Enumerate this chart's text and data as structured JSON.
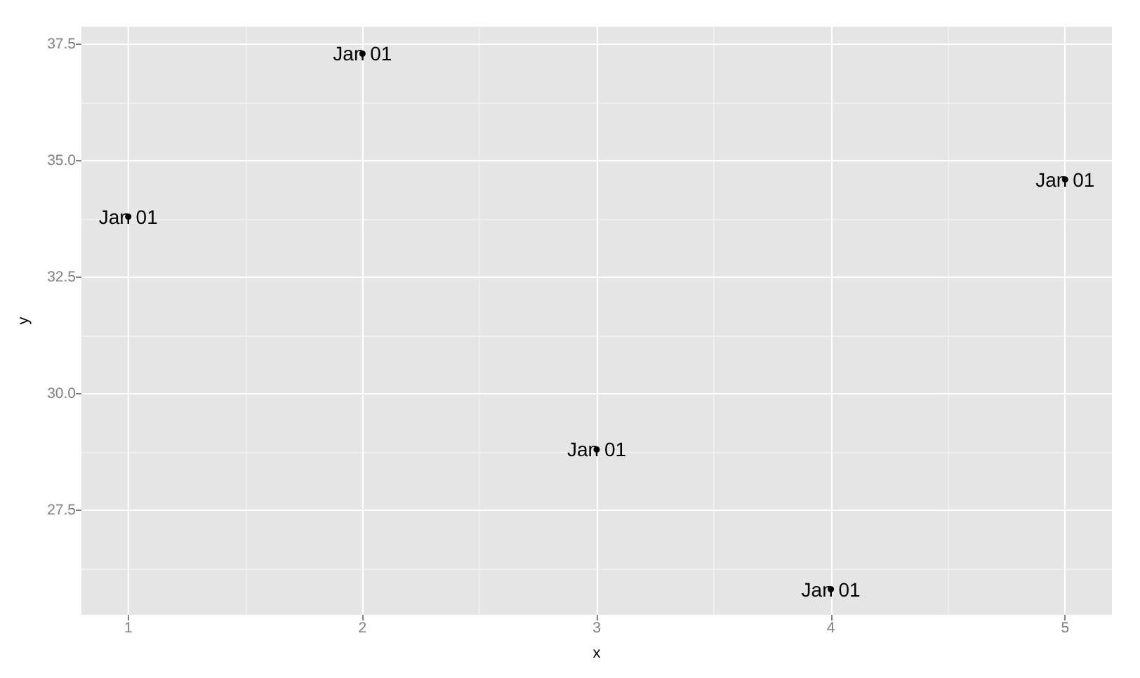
{
  "chart_data": {
    "type": "scatter",
    "xlabel": "x",
    "ylabel": "y",
    "x": [
      1,
      2,
      3,
      4,
      5
    ],
    "values": [
      33.8,
      37.3,
      28.8,
      25.8,
      34.6
    ],
    "value_labels": [
      "Jan 01",
      "Jan 01",
      "Jan 01",
      "Jan 01",
      "Jan 01"
    ],
    "color": "#000000",
    "marker": "circle",
    "xlim": [
      0.8,
      5.2
    ],
    "ylim": [
      25.25,
      37.88
    ],
    "xticks": [
      1,
      2,
      3,
      4,
      5
    ],
    "yticks": [
      27.5,
      {
        "value": 30,
        "label": "30.0"
      },
      32.5,
      {
        "value": 35,
        "label": "35.0"
      },
      37.5
    ],
    "grid": true
  }
}
